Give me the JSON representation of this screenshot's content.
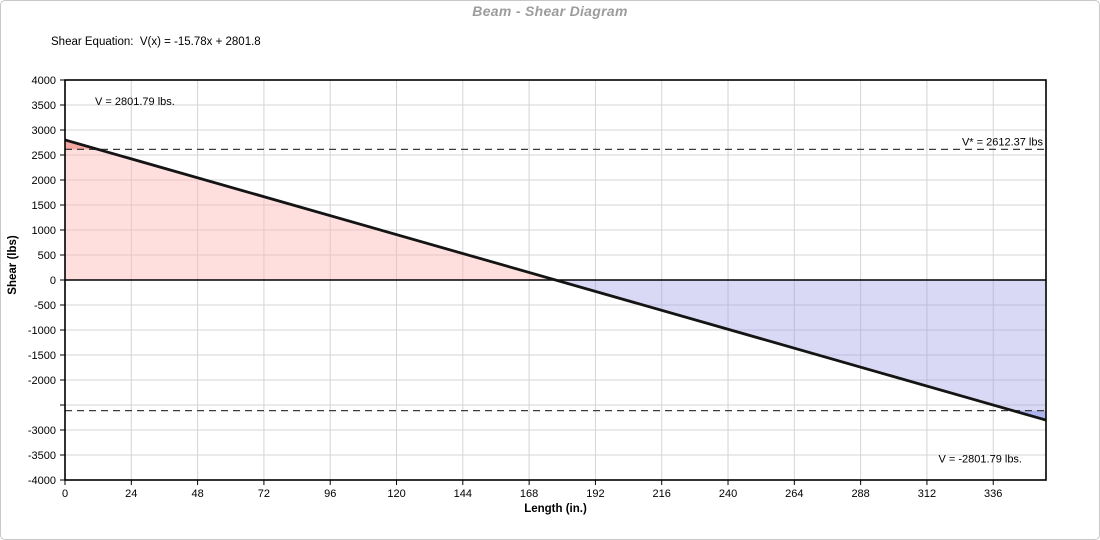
{
  "chart_data": {
    "type": "line",
    "title": "Beam - Shear Diagram",
    "equation_text": "Shear Equation:  V(x) = -15.78x + 2801.8",
    "xlabel": "Length (in.)",
    "ylabel": "Shear (lbs)",
    "xlim": [
      0,
      355.1
    ],
    "ylim": [
      -4000,
      4000
    ],
    "x_tick_step": 24,
    "x_tick_max": 336,
    "y_tick_step": 500,
    "y_ticks_without_label": [
      -2500
    ],
    "shear_line": {
      "slope": -15.78,
      "intercept": 2801.8,
      "x_start": 0,
      "x_end": 355.1,
      "v_start": 2801.79,
      "v_end": -2801.79
    },
    "v_star": 2612.37,
    "annotations": {
      "v_max": "V = 2801.79 lbs.",
      "v_star": "V* = 2612.37 lbs",
      "v_min": "V = -2801.79 lbs."
    },
    "colors": {
      "positive_fill": "#ffb6b6",
      "positive_exceed_fill": "#f4a7a3",
      "negative_fill": "#9b9be8",
      "negative_exceed_fill": "#acb3ef",
      "line": "#141414",
      "grid": "#d4d4d4",
      "dashed": "#3c3c3c",
      "axis": "#000000",
      "title": "#9c9c9e"
    }
  }
}
